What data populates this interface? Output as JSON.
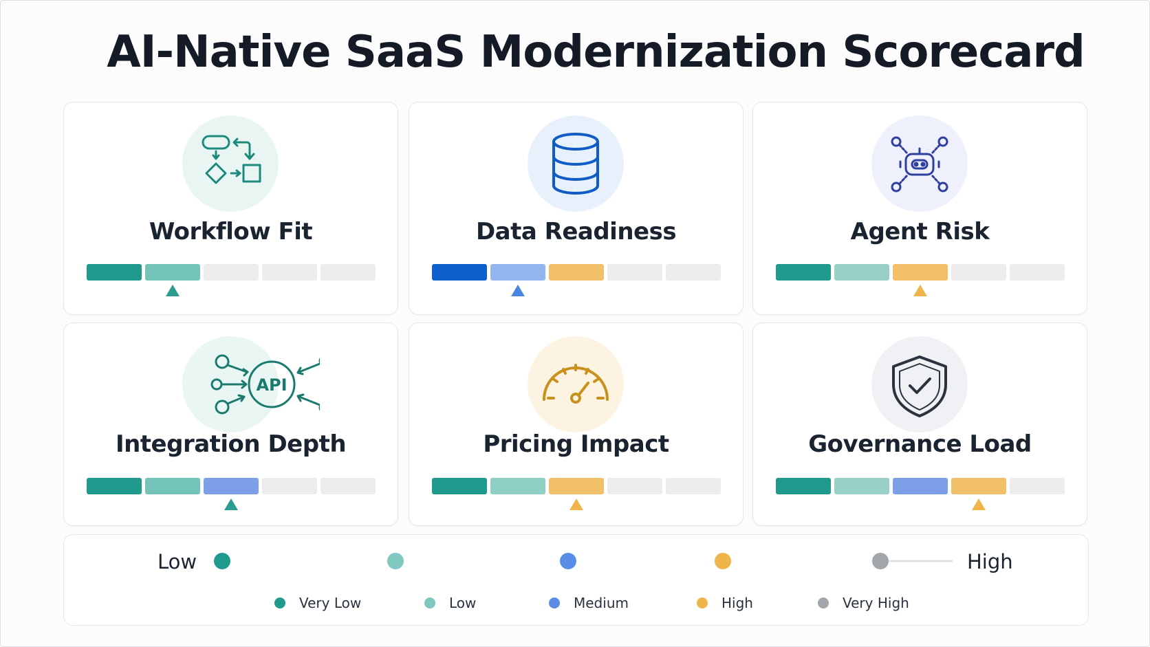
{
  "title": "AI-Native SaaS Modernization Scorecard",
  "colors": {
    "very_low": "#1f9a8c",
    "low": "#7ec8bf",
    "medium": "#5a8ee6",
    "high": "#f0b54a",
    "very_high": "#a3a6aa",
    "empty": "#ececee"
  },
  "cards": [
    {
      "title": "Workflow Fit",
      "icon": "workflow-icon",
      "icon_bg": "#e8f5f2",
      "segments": [
        "#1f9a8c",
        "#74c3b8",
        "#ececee",
        "#ececee",
        "#ececee"
      ],
      "level": 2,
      "marker_color": "#2a9d8f"
    },
    {
      "title": "Data Readiness",
      "icon": "database-icon",
      "icon_bg": "#e8f0fb",
      "segments": [
        "#0f5fcc",
        "#94b6ee",
        "#f3c06a",
        "#ececee",
        "#ececee"
      ],
      "level": 2,
      "marker_color": "#4a86e0"
    },
    {
      "title": "Agent Risk",
      "icon": "ai-agent-icon",
      "icon_bg": "#eef0fb",
      "segments": [
        "#1f9a8c",
        "#96d0c8",
        "#f3c06a",
        "#ececee",
        "#ececee"
      ],
      "level": 3,
      "marker_color": "#f0b54a"
    },
    {
      "title": "Integration Depth",
      "icon": "api-icon",
      "icon_bg": "#eaf6f3",
      "segments": [
        "#1f9a8c",
        "#74c3b8",
        "#7d9fe8",
        "#ececee",
        "#ececee"
      ],
      "level": 3,
      "marker_color": "#2a9d8f"
    },
    {
      "title": "Pricing Impact",
      "icon": "gauge-icon",
      "icon_bg": "#fdf3e3",
      "segments": [
        "#1f9a8c",
        "#8fd0c6",
        "#f3c06a",
        "#ececee",
        "#ececee"
      ],
      "level": 3,
      "marker_color": "#f0b54a"
    },
    {
      "title": "Governance Load",
      "icon": "shield-check-icon",
      "icon_bg": "#eff1f4",
      "segments": [
        "#1f9a8c",
        "#96d0c8",
        "#7d9fe8",
        "#f3c06a",
        "#ececee"
      ],
      "level": 4,
      "marker_color": "#f0b54a"
    }
  ],
  "scale": {
    "low_label": "Low",
    "high_label": "High",
    "legend": [
      {
        "label": "Very Low",
        "color": "#1f9a8c"
      },
      {
        "label": "Low",
        "color": "#7ec8bf"
      },
      {
        "label": "Medium",
        "color": "#5a8ee6"
      },
      {
        "label": "High",
        "color": "#f0b54a"
      },
      {
        "label": "Very High",
        "color": "#a3a6aa"
      }
    ]
  }
}
